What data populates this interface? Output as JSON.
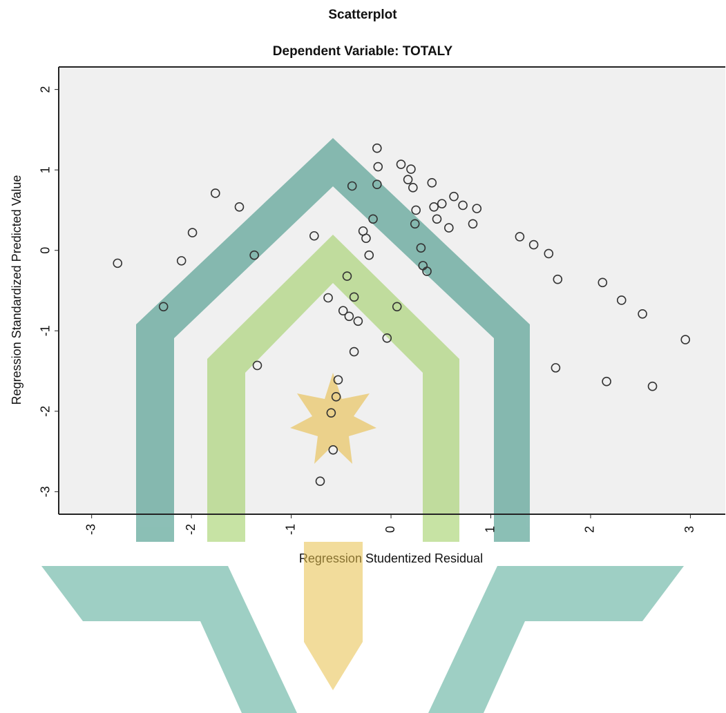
{
  "chart_data": {
    "type": "scatter",
    "title": "Scatterplot",
    "subtitle": "Dependent Variable: TOTALY",
    "xlabel": "Regression Studentized Residual",
    "ylabel": "Regression Standardized Predicted Value",
    "xlim": [
      -3.33,
      3.35
    ],
    "ylim": [
      -3.28,
      2.28
    ],
    "xticks": [
      -3,
      -2,
      -1,
      0,
      1,
      2,
      3
    ],
    "yticks": [
      -3,
      -2,
      -1,
      0,
      1,
      2
    ],
    "color": "#333333",
    "x": [
      -2.74,
      -2.28,
      -2.1,
      -1.99,
      -1.76,
      -1.52,
      -1.37,
      -1.34,
      -0.77,
      -0.71,
      -0.63,
      -0.58,
      -0.6,
      -0.55,
      -0.53,
      -0.48,
      -0.44,
      -0.42,
      -0.39,
      -0.37,
      -0.37,
      -0.33,
      -0.28,
      -0.25,
      -0.22,
      -0.18,
      -0.14,
      -0.14,
      -0.13,
      -0.04,
      0.06,
      0.1,
      0.17,
      0.2,
      0.22,
      0.24,
      0.25,
      0.3,
      0.32,
      0.36,
      0.41,
      0.43,
      0.46,
      0.51,
      0.58,
      0.63,
      0.72,
      0.82,
      0.86,
      1.29,
      1.43,
      1.58,
      1.67,
      1.65,
      2.12,
      2.16,
      2.31,
      2.52,
      2.62,
      2.95
    ],
    "values": [
      -0.16,
      -0.7,
      -0.13,
      0.22,
      0.71,
      0.54,
      -0.06,
      -1.43,
      0.18,
      -2.87,
      -0.59,
      -2.48,
      -2.02,
      -1.82,
      -1.61,
      -0.75,
      -0.32,
      -0.82,
      0.8,
      -0.58,
      -1.26,
      -0.88,
      0.24,
      0.15,
      -0.06,
      0.39,
      0.82,
      1.27,
      1.04,
      -1.09,
      -0.7,
      1.07,
      0.88,
      1.01,
      0.78,
      0.33,
      0.5,
      0.03,
      -0.19,
      -0.26,
      0.84,
      0.54,
      0.39,
      0.58,
      0.28,
      0.67,
      0.56,
      0.33,
      0.52,
      0.17,
      0.07,
      -0.04,
      -0.36,
      -1.46,
      -0.4,
      -1.63,
      -0.62,
      -0.79,
      -1.69,
      -1.11
    ]
  }
}
